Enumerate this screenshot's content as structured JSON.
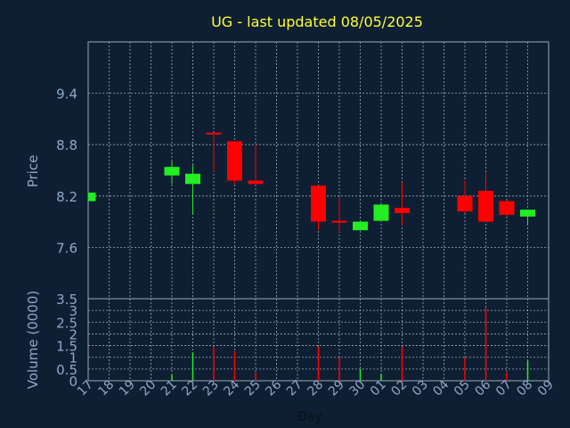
{
  "chart_data": {
    "type": "candlestick",
    "title": "UG - last updated 08/05/2025",
    "x_label": "Day",
    "categories": [
      "17",
      "18",
      "19",
      "20",
      "21",
      "22",
      "23",
      "24",
      "25",
      "26",
      "27",
      "28",
      "29",
      "30",
      "01",
      "02",
      "03",
      "04",
      "05",
      "06",
      "07",
      "08",
      "09"
    ],
    "price_panel": {
      "y_label": "Price",
      "y_ticks": [
        "9.4",
        "8.8",
        "8.2",
        "7.6"
      ],
      "ylim": [
        7.0,
        10.0
      ],
      "candles": [
        {
          "day": "17",
          "open": 8.14,
          "close": 8.24,
          "high": 8.24,
          "low": 8.14,
          "color": "green"
        },
        {
          "day": "21",
          "open": 8.44,
          "close": 8.54,
          "high": 8.62,
          "low": 8.34,
          "color": "green"
        },
        {
          "day": "22",
          "open": 8.34,
          "close": 8.46,
          "high": 8.56,
          "low": 7.98,
          "color": "green"
        },
        {
          "day": "23",
          "open": 8.94,
          "close": 8.92,
          "high": 8.94,
          "low": 8.48,
          "color": "red"
        },
        {
          "day": "24",
          "open": 8.84,
          "close": 8.38,
          "high": 8.84,
          "low": 8.34,
          "color": "red"
        },
        {
          "day": "25",
          "open": 8.38,
          "close": 8.34,
          "high": 8.8,
          "low": 8.34,
          "color": "red"
        },
        {
          "day": "28",
          "open": 8.32,
          "close": 7.9,
          "high": 8.32,
          "low": 7.8,
          "color": "red"
        },
        {
          "day": "29",
          "open": 7.91,
          "close": 7.89,
          "high": 8.18,
          "low": 7.78,
          "color": "red"
        },
        {
          "day": "30",
          "open": 7.8,
          "close": 7.9,
          "high": 7.9,
          "low": 7.8,
          "color": "green"
        },
        {
          "day": "01",
          "open": 7.91,
          "close": 8.1,
          "high": 8.1,
          "low": 7.91,
          "color": "green"
        },
        {
          "day": "02",
          "open": 8.06,
          "close": 8.0,
          "high": 8.36,
          "low": 7.86,
          "color": "red"
        },
        {
          "day": "05",
          "open": 8.2,
          "close": 8.02,
          "high": 8.38,
          "low": 8.0,
          "color": "red"
        },
        {
          "day": "06",
          "open": 8.26,
          "close": 7.9,
          "high": 8.48,
          "low": 7.9,
          "color": "red"
        },
        {
          "day": "07",
          "open": 8.14,
          "close": 7.98,
          "high": 8.14,
          "low": 7.96,
          "color": "red"
        },
        {
          "day": "08",
          "open": 7.96,
          "close": 8.04,
          "high": 8.04,
          "low": 7.86,
          "color": "green"
        }
      ]
    },
    "volume_panel": {
      "y_label": "Volume (0000)",
      "y_ticks": [
        "3.5",
        "3",
        "2.5",
        "2",
        "1.5",
        "1",
        "0.5",
        "0"
      ],
      "ylim": [
        0,
        3.5
      ],
      "bars": [
        {
          "day": "21",
          "value": 0.25,
          "color": "green"
        },
        {
          "day": "22",
          "value": 1.2,
          "color": "green"
        },
        {
          "day": "23",
          "value": 1.45,
          "color": "red"
        },
        {
          "day": "24",
          "value": 1.25,
          "color": "red"
        },
        {
          "day": "25",
          "value": 0.35,
          "color": "red"
        },
        {
          "day": "28",
          "value": 1.45,
          "color": "red"
        },
        {
          "day": "29",
          "value": 1.0,
          "color": "red"
        },
        {
          "day": "30",
          "value": 0.5,
          "color": "green"
        },
        {
          "day": "01",
          "value": 0.3,
          "color": "green"
        },
        {
          "day": "02",
          "value": 1.45,
          "color": "red"
        },
        {
          "day": "05",
          "value": 1.0,
          "color": "red"
        },
        {
          "day": "06",
          "value": 3.1,
          "color": "red"
        },
        {
          "day": "07",
          "value": 0.35,
          "color": "red"
        },
        {
          "day": "08",
          "value": 0.85,
          "color": "green"
        }
      ]
    },
    "grid": true,
    "colors": {
      "background": "#0f1f33",
      "grid": "#9aa8b8",
      "title": "#ffff33",
      "label": "#8fa7c8",
      "up": "#22ee22",
      "down": "#ff0000"
    }
  }
}
